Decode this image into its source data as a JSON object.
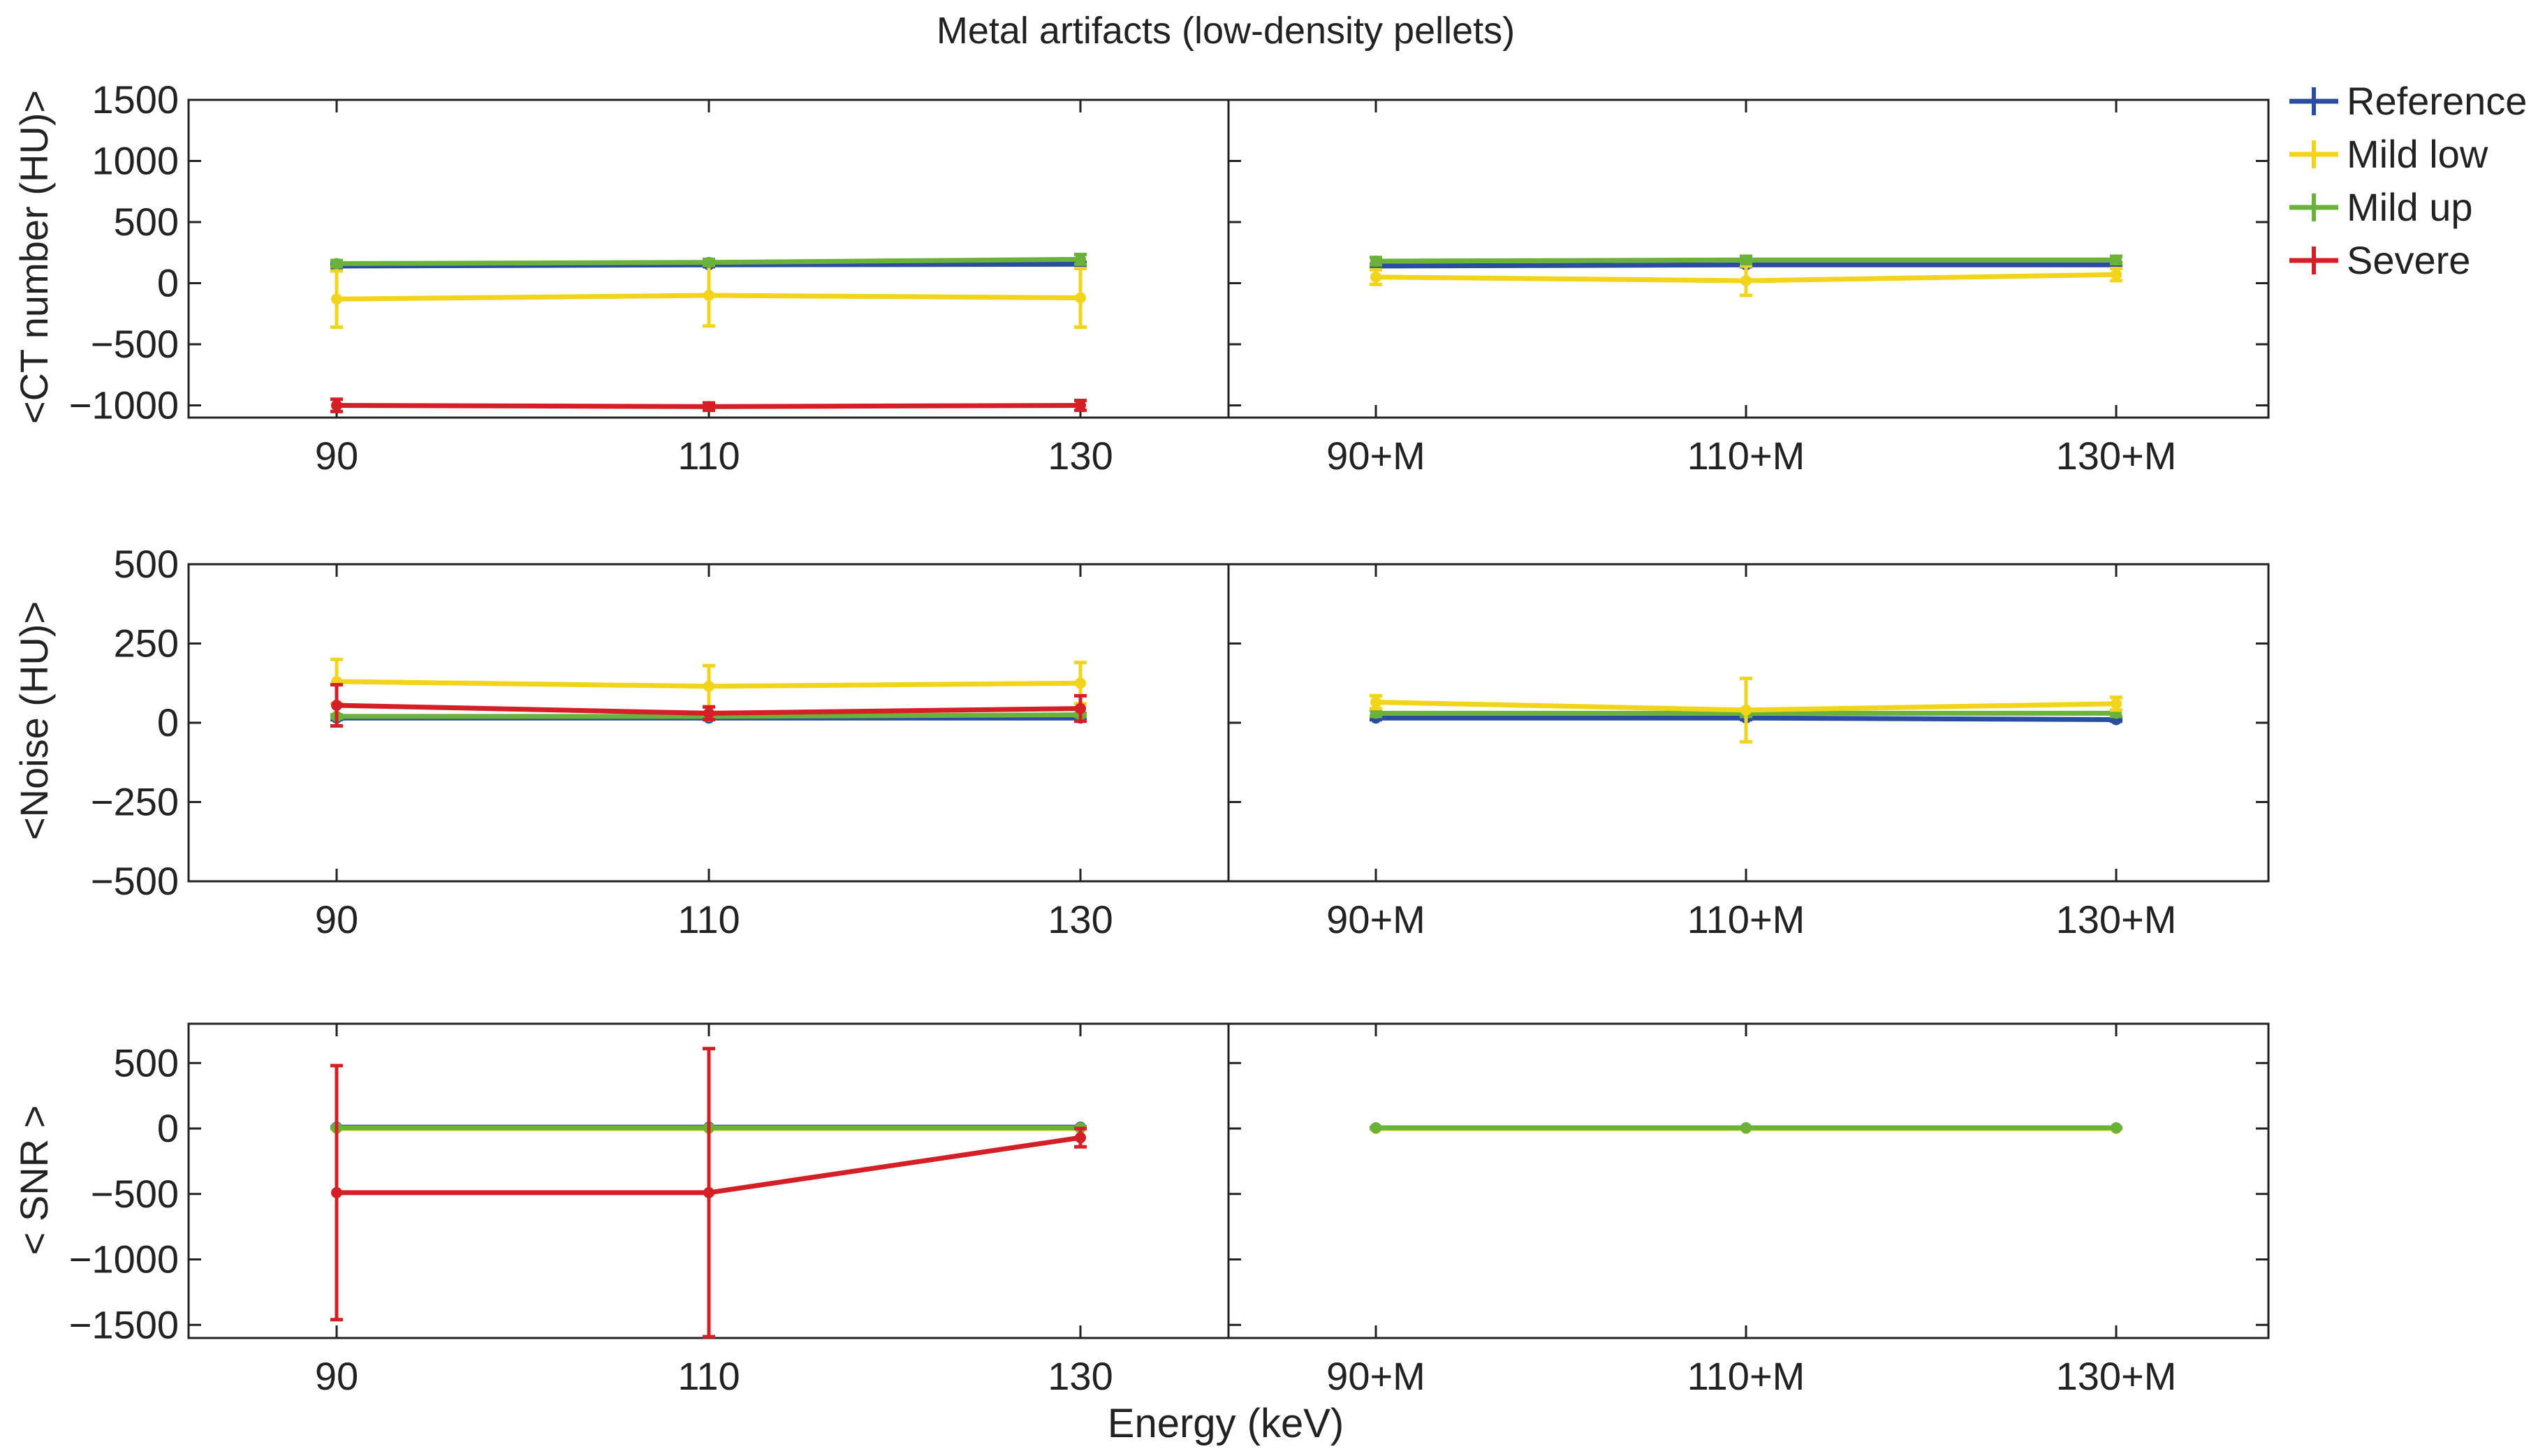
{
  "chart_data": {
    "type": "line",
    "title": "Metal artifacts (low-density pellets)",
    "xlabel": "Energy (keV)",
    "legend": {
      "placement": "top-right, outside plot area",
      "entries": [
        "Reference",
        "Mild low",
        "Mild up",
        "Severe"
      ]
    },
    "colors": {
      "Reference": "#2a4d9f",
      "Mild low": "#f2d41a",
      "Mild up": "#6ab23a",
      "Severe": "#d41f26"
    },
    "panels": [
      {
        "ylabel": "<CT number (HU)>",
        "ylim": [
          -1100,
          1500
        ],
        "yticks": [
          1500,
          1000,
          500,
          0,
          -500,
          -1000
        ],
        "ytick_labels": [
          "1500",
          "1000",
          "500",
          "0",
          "−500",
          "−1000"
        ],
        "columns": [
          {
            "categories": [
              "90",
              "110",
              "130"
            ],
            "series": [
              {
                "name": "Reference",
                "values": [
                  140,
                  150,
                  155
                ],
                "err": [
                  15,
                  15,
                  15
                ]
              },
              {
                "name": "Mild low",
                "values": [
                  -130,
                  -100,
                  -120
                ],
                "err": [
                  230,
                  250,
                  240
                ]
              },
              {
                "name": "Mild up",
                "values": [
                  160,
                  170,
                  195
                ],
                "err": [
                  25,
                  25,
                  40
                ]
              },
              {
                "name": "Severe",
                "values": [
                  -1000,
                  -1010,
                  -1000
                ],
                "err": [
                  50,
                  30,
                  40
                ]
              }
            ]
          },
          {
            "categories": [
              "90+M",
              "110+M",
              "130+M"
            ],
            "series": [
              {
                "name": "Reference",
                "values": [
                  140,
                  150,
                  150
                ],
                "err": [
                  15,
                  15,
                  15
                ]
              },
              {
                "name": "Mild low",
                "values": [
                  50,
                  20,
                  70
                ],
                "err": [
                  60,
                  120,
                  50
                ]
              },
              {
                "name": "Mild up",
                "values": [
                  180,
                  190,
                  190
                ],
                "err": [
                  30,
                  30,
                  30
                ]
              }
            ]
          }
        ]
      },
      {
        "ylabel": "<Noise (HU)>",
        "ylim": [
          -500,
          500
        ],
        "yticks": [
          500,
          250,
          0,
          -250,
          -500
        ],
        "ytick_labels": [
          "500",
          "250",
          "0",
          "−250",
          "−500"
        ],
        "columns": [
          {
            "categories": [
              "90",
              "110",
              "130"
            ],
            "series": [
              {
                "name": "Reference",
                "values": [
                  15,
                  15,
                  15
                ],
                "err": [
                  5,
                  5,
                  5
                ]
              },
              {
                "name": "Mild up",
                "values": [
                  20,
                  20,
                  25
                ],
                "err": [
                  5,
                  5,
                  5
                ]
              },
              {
                "name": "Mild low",
                "values": [
                  130,
                  115,
                  125
                ],
                "err": [
                  70,
                  65,
                  65
                ]
              },
              {
                "name": "Severe",
                "values": [
                  55,
                  30,
                  45
                ],
                "err": [
                  65,
                  20,
                  40
                ]
              }
            ]
          },
          {
            "categories": [
              "90+M",
              "110+M",
              "130+M"
            ],
            "series": [
              {
                "name": "Reference",
                "values": [
                  15,
                  15,
                  10
                ],
                "err": [
                  5,
                  5,
                  5
                ]
              },
              {
                "name": "Mild up",
                "values": [
                  30,
                  30,
                  30
                ],
                "err": [
                  10,
                  10,
                  10
                ]
              },
              {
                "name": "Mild low",
                "values": [
                  65,
                  40,
                  60
                ],
                "err": [
                  20,
                  100,
                  20
                ]
              }
            ]
          }
        ]
      },
      {
        "ylabel": "< SNR >",
        "ylim": [
          -1600,
          800
        ],
        "yticks": [
          500,
          0,
          -500,
          -1000,
          -1500
        ],
        "ytick_labels": [
          "500",
          "0",
          "−500",
          "−1000",
          "−1500"
        ],
        "columns": [
          {
            "categories": [
              "90",
              "110",
              "130"
            ],
            "series": [
              {
                "name": "Reference",
                "values": [
                  10,
                  10,
                  10
                ],
                "err": [
                  3,
                  3,
                  3
                ]
              },
              {
                "name": "Mild low",
                "values": [
                  0,
                  0,
                  0
                ],
                "err": [
                  3,
                  3,
                  3
                ]
              },
              {
                "name": "Mild up",
                "values": [
                  5,
                  5,
                  5
                ],
                "err": [
                  3,
                  3,
                  3
                ]
              },
              {
                "name": "Severe",
                "values": [
                  -490,
                  -490,
                  -70
                ],
                "err": [
                  970,
                  1100,
                  70
                ]
              }
            ]
          },
          {
            "categories": [
              "90+M",
              "110+M",
              "130+M"
            ],
            "series": [
              {
                "name": "Reference",
                "values": [
                  5,
                  5,
                  5
                ],
                "err": [
                  3,
                  3,
                  3
                ]
              },
              {
                "name": "Mild low",
                "values": [
                  0,
                  0,
                  0
                ],
                "err": [
                  3,
                  3,
                  3
                ]
              },
              {
                "name": "Mild up",
                "values": [
                  5,
                  5,
                  5
                ],
                "err": [
                  3,
                  3,
                  3
                ]
              }
            ]
          }
        ]
      }
    ]
  }
}
